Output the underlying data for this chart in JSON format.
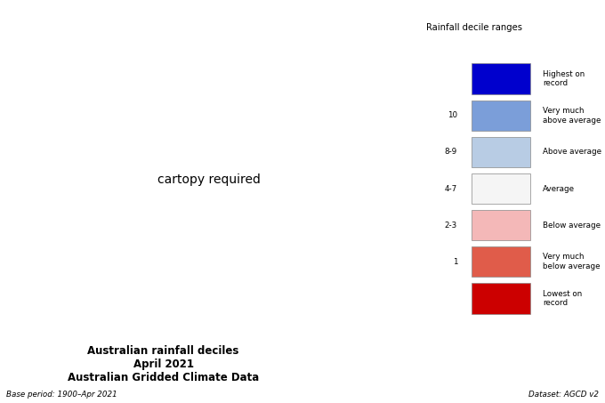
{
  "title_line1": "Australian rainfall deciles",
  "title_line2": "April 2021",
  "title_line3": "Australian Gridded Climate Data",
  "base_period": "Base period: 1900–Apr 2021",
  "dataset_label": "Dataset: AGCD v2",
  "legend_title": "Rainfall decile ranges",
  "background_color": "#ffffff",
  "ocean_color": "#c8daea",
  "figsize": [
    6.8,
    4.53
  ],
  "dpi": 100,
  "color_highest": "#0000cd",
  "color_very_above": "#7b9ed9",
  "color_above": "#b8cce4",
  "color_average": "#f5f5f5",
  "color_below": "#f4b8b8",
  "color_very_below": "#e05c4a",
  "color_lowest": "#cc0000",
  "border_color": "#888888",
  "coast_color": "#444444",
  "legend_items": [
    {
      "label": "Highest on\nrecord",
      "color": "#0000cd",
      "tick": null
    },
    {
      "label": "Very much\nabove average",
      "color": "#7b9ed9",
      "tick": "10"
    },
    {
      "label": "Above average",
      "color": "#b8cce4",
      "tick": "8-9"
    },
    {
      "label": "Average",
      "color": "#f5f5f5",
      "tick": "4-7"
    },
    {
      "label": "Below average",
      "color": "#f4b8b8",
      "tick": "2-3"
    },
    {
      "label": "Very much\nbelow average",
      "color": "#e05c4a",
      "tick": "1"
    },
    {
      "label": "Lowest on\nrecord",
      "color": "#cc0000",
      "tick": null
    }
  ]
}
